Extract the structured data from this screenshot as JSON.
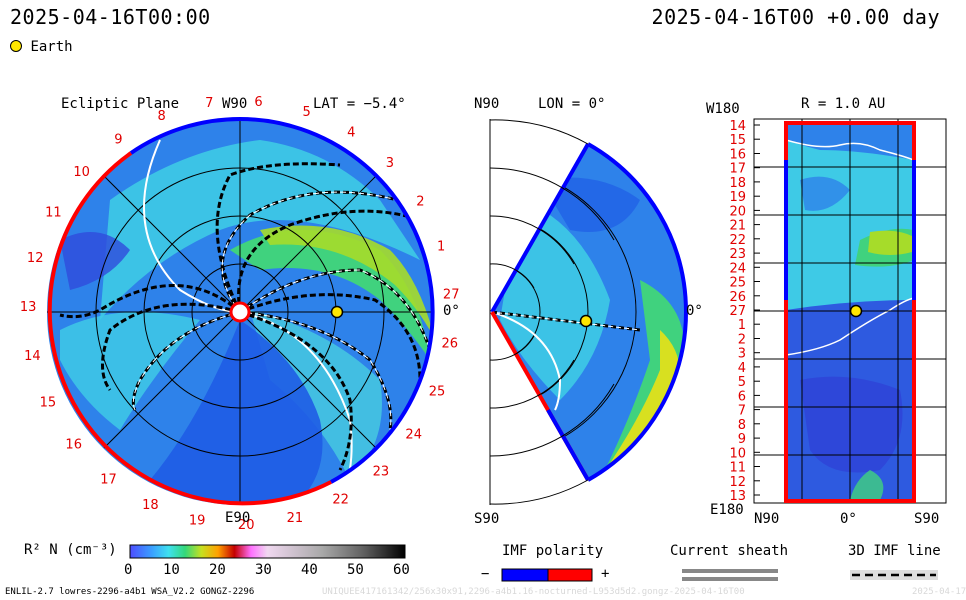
{
  "header": {
    "datetime_left": "2025-04-16T00:00",
    "datetime_right": "2025-04-16T00 +0.00 day",
    "legend_earth": "Earth"
  },
  "panel_ecliptic": {
    "title": "Ecliptic Plane",
    "lat": "LAT = −5.4°",
    "top_label": "W90",
    "bottom_label": "E90",
    "right_label": "0°",
    "ticks": [
      "19",
      "20",
      "21",
      "22",
      "23",
      "24",
      "25",
      "26",
      "27",
      "1",
      "2",
      "3",
      "4",
      "5",
      "6",
      "7",
      "8",
      "9",
      "10",
      "11",
      "12",
      "13",
      "14",
      "15",
      "16",
      "17",
      "18"
    ]
  },
  "panel_meridional": {
    "top_label": "N90",
    "lon": "LON = 0°",
    "bottom_label": "S90",
    "right_label": "0°"
  },
  "panel_map": {
    "title": "R = 1.0 AU",
    "top_left": "W180",
    "bottom_left": "E180",
    "x_labels": [
      "N90",
      "0°",
      "S90"
    ],
    "rows": [
      "14",
      "15",
      "16",
      "17",
      "18",
      "19",
      "20",
      "21",
      "22",
      "23",
      "24",
      "25",
      "26",
      "27",
      "1",
      "2",
      "3",
      "4",
      "5",
      "6",
      "7",
      "8",
      "9",
      "10",
      "11",
      "12",
      "13"
    ]
  },
  "colorbar": {
    "label": "R² N (cm⁻³)",
    "ticks": [
      "0",
      "10",
      "20",
      "30",
      "40",
      "50",
      "60"
    ]
  },
  "imf_legend": {
    "title": "IMF polarity",
    "minus": "−",
    "plus": "+"
  },
  "sheath_legend": {
    "title": "Current sheath"
  },
  "imf3d_legend": {
    "title": "3D IMF line"
  },
  "footer": {
    "model": "ENLIL-2.7 lowres-2296-a4b1 WSA_V2.2 GONGZ-2296",
    "faint": "UNIQUEE417161342/256x30x91,2296-a4b1.16-nocturned-L953d5d2.gongz-2025-04-16T00",
    "faint_right": "2025-04-17"
  },
  "colors": {
    "text_red": "#e00000",
    "imf_negative": "#0000ff",
    "imf_positive": "#ff0000",
    "earth": "#ffe600"
  }
}
